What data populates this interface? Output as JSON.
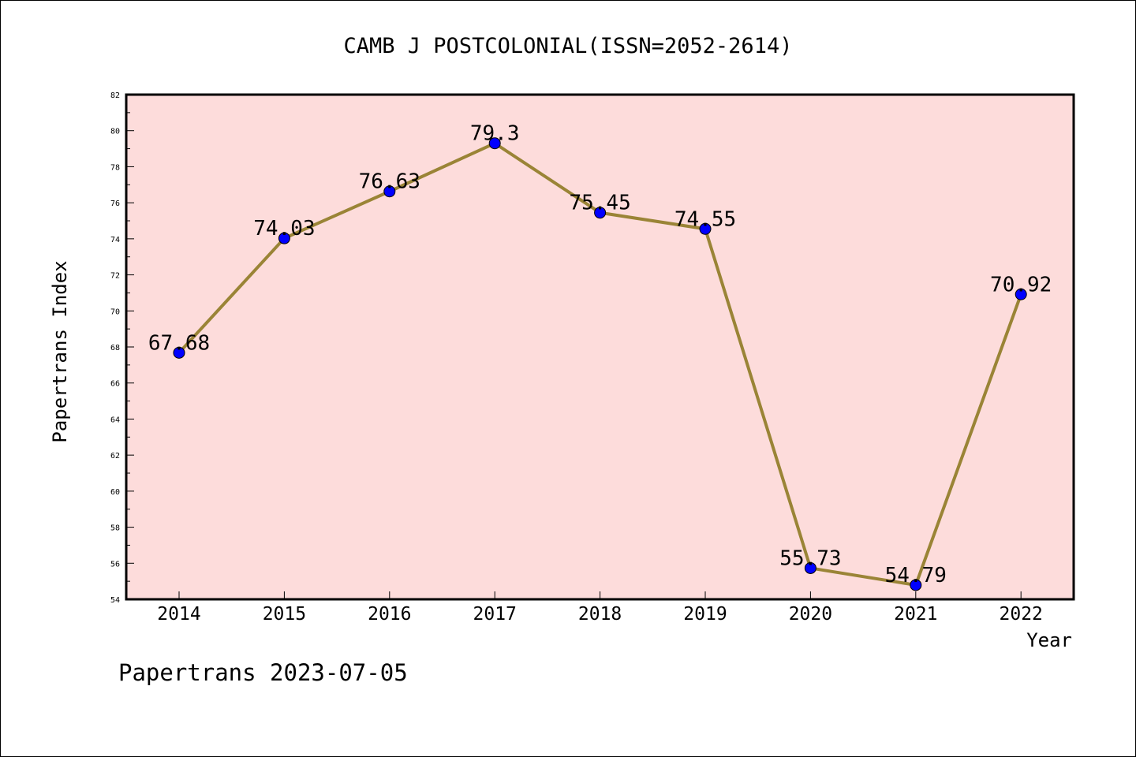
{
  "chart_data": {
    "type": "line",
    "title": "CAMB J POSTCOLONIAL(ISSN=2052-2614)",
    "xlabel": "Year",
    "ylabel": "Papertrans Index",
    "categories": [
      "2014",
      "2015",
      "2016",
      "2017",
      "2018",
      "2019",
      "2020",
      "2021",
      "2022"
    ],
    "values": [
      67.68,
      74.03,
      76.63,
      79.3,
      75.45,
      74.55,
      55.73,
      54.79,
      70.92
    ],
    "data_labels": [
      "67.68",
      "74.03",
      "76.63",
      "79.3",
      "75.45",
      "74.55",
      "55.73",
      "54.79",
      "70.92"
    ],
    "ylim": [
      54,
      82
    ],
    "yticks": [
      "54",
      "56",
      "58",
      "60",
      "62",
      "64",
      "66",
      "68",
      "70",
      "72",
      "74",
      "76",
      "78",
      "80",
      "82"
    ],
    "grid": false,
    "footer": "Papertrans 2023-07-05",
    "colors": {
      "plot_background": "#fddcdb",
      "line": "#9a8436",
      "marker": "#0000ff"
    }
  }
}
